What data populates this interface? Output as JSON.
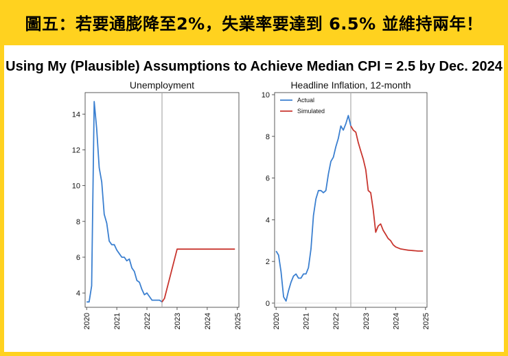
{
  "header": {
    "title": "圖五：若要通膨降至2%，失業率要達到 6.5% 並維持兩年！"
  },
  "figure": {
    "subtitle": "Using My (Plausible) Assumptions to Achieve Median CPI = 2.5 by Dec. 2024"
  },
  "colors": {
    "background": "#ffd21f",
    "actual": "#3a7fd0",
    "simulated": "#c8352e",
    "vline": "#aaaaaa"
  },
  "chart_data": [
    {
      "type": "line",
      "title": "Unemployment",
      "xlabel": "",
      "ylabel": "",
      "xlim": [
        2019.95,
        2025.05
      ],
      "ylim": [
        3.2,
        15.2
      ],
      "yticks": [
        4,
        6,
        8,
        10,
        12,
        14
      ],
      "xticks": [
        "2020",
        "2021",
        "2022",
        "2023",
        "2024",
        "2025"
      ],
      "vline": 2022.5,
      "legend": null,
      "series": [
        {
          "name": "Actual",
          "x": [
            2020.0,
            2020.083,
            2020.167,
            2020.25,
            2020.333,
            2020.417,
            2020.5,
            2020.583,
            2020.667,
            2020.75,
            2020.833,
            2020.917,
            2021.0,
            2021.083,
            2021.167,
            2021.25,
            2021.333,
            2021.417,
            2021.5,
            2021.583,
            2021.667,
            2021.75,
            2021.833,
            2021.917,
            2022.0,
            2022.083,
            2022.167,
            2022.25,
            2022.333,
            2022.417,
            2022.5
          ],
          "y": [
            3.5,
            3.5,
            4.4,
            14.7,
            13.2,
            11.0,
            10.2,
            8.4,
            7.9,
            6.9,
            6.7,
            6.7,
            6.4,
            6.2,
            6.0,
            6.0,
            5.8,
            5.9,
            5.4,
            5.2,
            4.7,
            4.6,
            4.2,
            3.9,
            4.0,
            3.8,
            3.6,
            3.6,
            3.6,
            3.6,
            3.5
          ]
        },
        {
          "name": "Simulated",
          "x": [
            2022.5,
            2022.583,
            2023.0,
            2024.0,
            2024.917
          ],
          "y": [
            3.5,
            3.7,
            6.45,
            6.45,
            6.45
          ]
        }
      ]
    },
    {
      "type": "line",
      "title": "Headline Inflation, 12-month",
      "xlabel": "",
      "ylabel": "",
      "xlim": [
        2019.95,
        2025.05
      ],
      "ylim": [
        -0.2,
        10.1
      ],
      "yticks": [
        0,
        2,
        4,
        6,
        8,
        10
      ],
      "xticks": [
        "2020",
        "2021",
        "2022",
        "2023",
        "2024",
        "2025"
      ],
      "vline": 2022.5,
      "legend": "top-left",
      "series": [
        {
          "name": "Actual",
          "x": [
            2020.0,
            2020.083,
            2020.167,
            2020.25,
            2020.333,
            2020.417,
            2020.5,
            2020.583,
            2020.667,
            2020.75,
            2020.833,
            2020.917,
            2021.0,
            2021.083,
            2021.167,
            2021.25,
            2021.333,
            2021.417,
            2021.5,
            2021.583,
            2021.667,
            2021.75,
            2021.833,
            2021.917,
            2022.0,
            2022.083,
            2022.167,
            2022.25,
            2022.333,
            2022.417,
            2022.5
          ],
          "y": [
            2.5,
            2.3,
            1.5,
            0.3,
            0.1,
            0.6,
            1.0,
            1.3,
            1.4,
            1.2,
            1.2,
            1.4,
            1.4,
            1.7,
            2.6,
            4.2,
            5.0,
            5.4,
            5.4,
            5.3,
            5.4,
            6.2,
            6.8,
            7.0,
            7.5,
            7.9,
            8.5,
            8.3,
            8.6,
            9.0,
            8.5
          ]
        },
        {
          "name": "Simulated",
          "x": [
            2022.5,
            2022.583,
            2022.667,
            2022.75,
            2022.833,
            2022.917,
            2023.0,
            2023.083,
            2023.167,
            2023.25,
            2023.333,
            2023.417,
            2023.5,
            2023.583,
            2023.667,
            2023.75,
            2023.833,
            2023.917,
            2024.0,
            2024.083,
            2024.167,
            2024.25,
            2024.333,
            2024.417,
            2024.5,
            2024.583,
            2024.667,
            2024.75,
            2024.833,
            2024.917
          ],
          "y": [
            8.5,
            8.3,
            8.2,
            7.7,
            7.3,
            6.9,
            6.4,
            5.4,
            5.3,
            4.5,
            3.4,
            3.7,
            3.8,
            3.5,
            3.3,
            3.1,
            3.0,
            2.8,
            2.7,
            2.65,
            2.6,
            2.58,
            2.56,
            2.54,
            2.53,
            2.52,
            2.51,
            2.5,
            2.5,
            2.5
          ]
        }
      ]
    }
  ]
}
